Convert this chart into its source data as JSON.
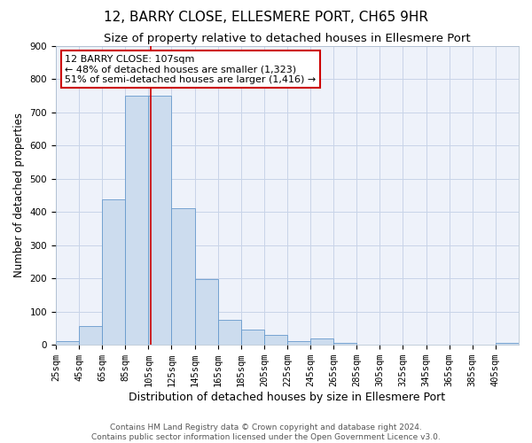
{
  "title": "12, BARRY CLOSE, ELLESMERE PORT, CH65 9HR",
  "subtitle": "Size of property relative to detached houses in Ellesmere Port",
  "xlabel": "Distribution of detached houses by size in Ellesmere Port",
  "ylabel": "Number of detached properties",
  "bar_color": "#ccdcee",
  "bar_edge_color": "#6699cc",
  "grid_color": "#c8d4e8",
  "background_color": "#eef2fa",
  "marker_value": 107,
  "marker_line_color": "#cc0000",
  "annotation_text": "12 BARRY CLOSE: 107sqm\n← 48% of detached houses are smaller (1,323)\n51% of semi-detached houses are larger (1,416) →",
  "annotation_box_color": "white",
  "annotation_box_edge_color": "#cc0000",
  "bins": [
    25,
    45,
    65,
    85,
    105,
    125,
    145,
    165,
    185,
    205,
    225,
    245,
    265,
    285,
    305,
    325,
    345,
    365,
    385,
    405,
    425
  ],
  "counts": [
    10,
    57,
    438,
    750,
    750,
    410,
    198,
    75,
    47,
    30,
    10,
    20,
    5,
    0,
    0,
    0,
    0,
    0,
    0,
    5
  ],
  "ylim": [
    0,
    900
  ],
  "yticks": [
    0,
    100,
    200,
    300,
    400,
    500,
    600,
    700,
    800,
    900
  ],
  "footer": "Contains HM Land Registry data © Crown copyright and database right 2024.\nContains public sector information licensed under the Open Government Licence v3.0.",
  "title_fontsize": 11,
  "subtitle_fontsize": 9.5,
  "xlabel_fontsize": 9,
  "ylabel_fontsize": 8.5,
  "tick_fontsize": 7.5,
  "footer_fontsize": 6.5
}
